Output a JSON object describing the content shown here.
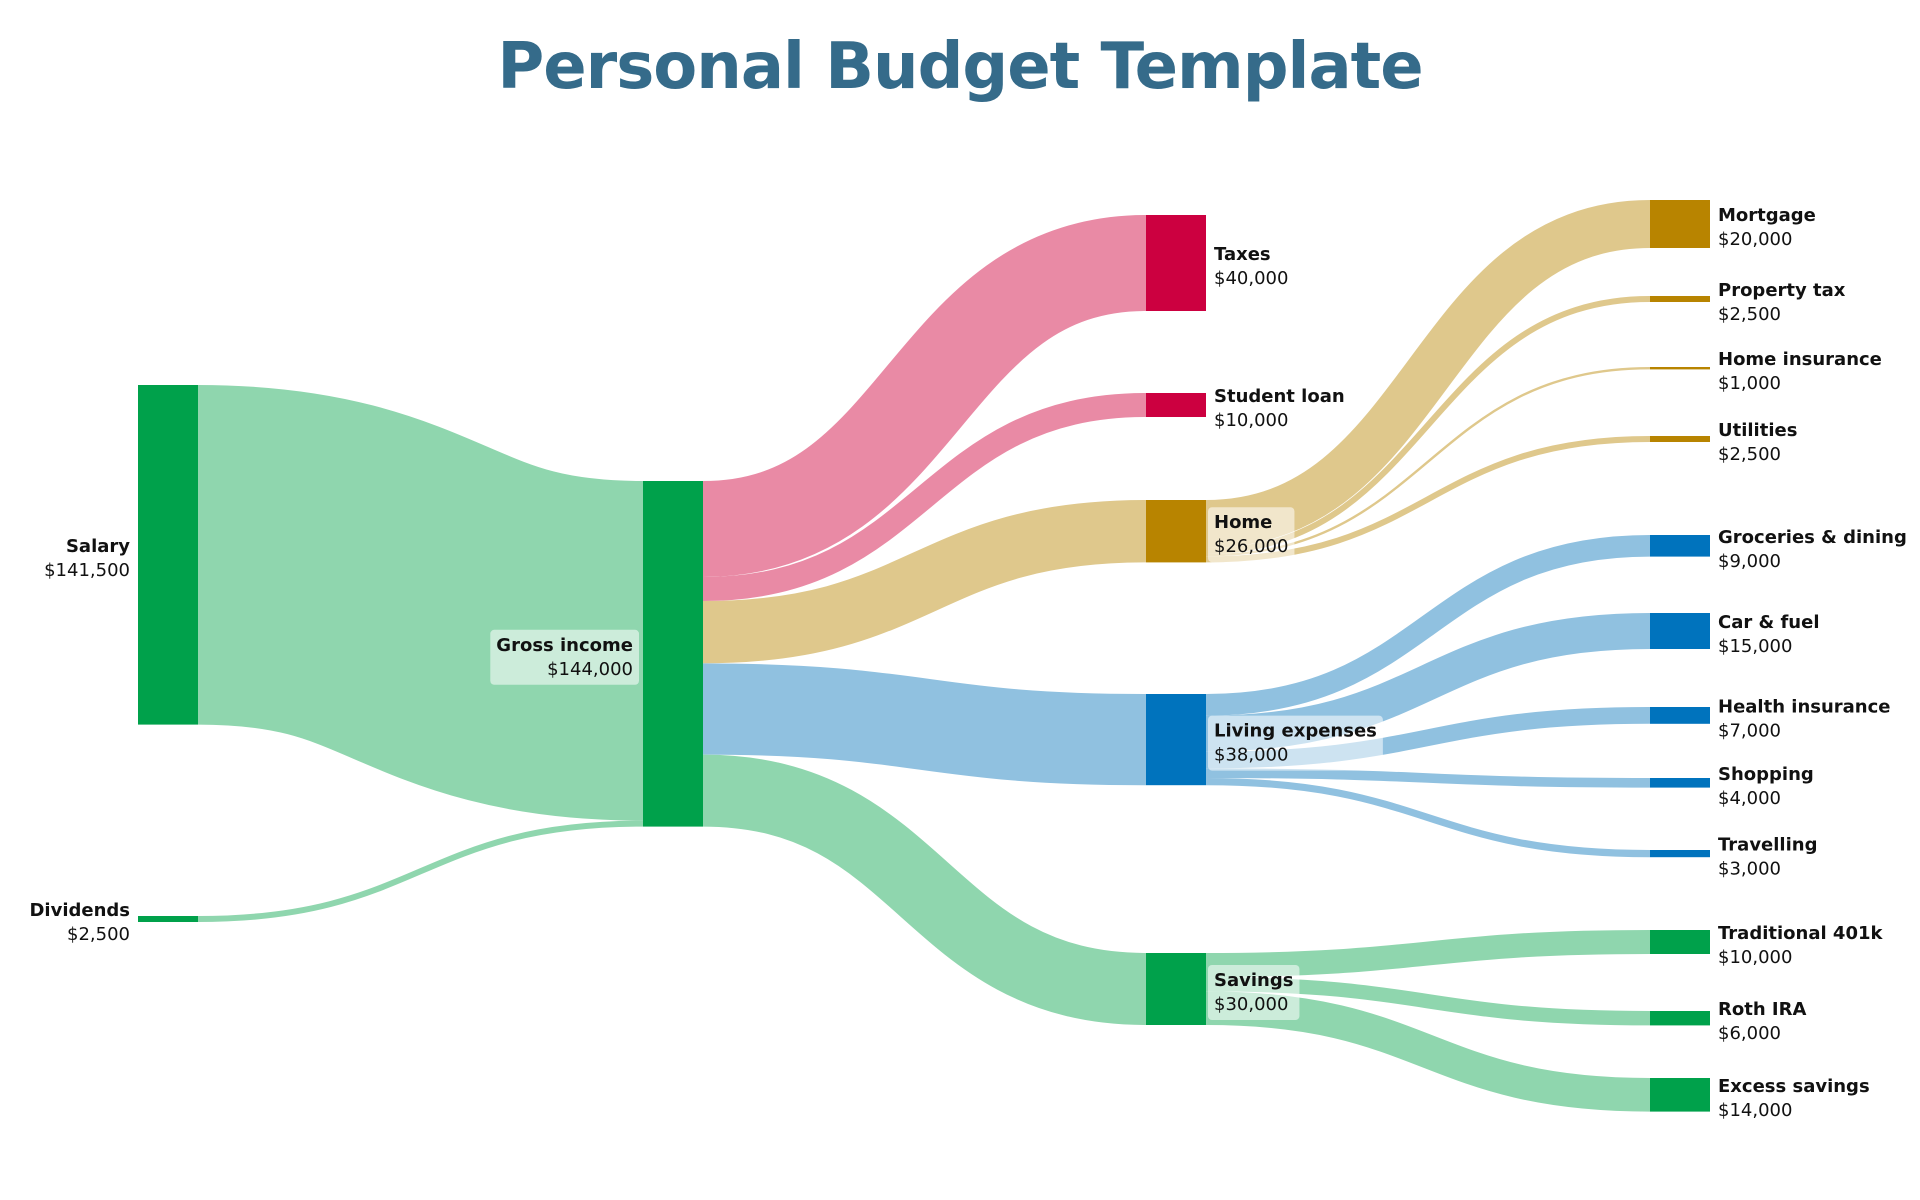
{
  "chart_data": {
    "type": "sankey",
    "title": "Personal Budget Template",
    "nodes": [
      {
        "id": "salary",
        "name": "Salary",
        "value_label": "$141,500",
        "value": 141500,
        "column": 0,
        "color": "#00a14b",
        "label_side": "left"
      },
      {
        "id": "dividends",
        "name": "Dividends",
        "value_label": "$2,500",
        "value": 2500,
        "column": 0,
        "color": "#00a14b",
        "label_side": "left"
      },
      {
        "id": "gross",
        "name": "Gross income",
        "value_label": "$144,000",
        "value": 144000,
        "column": 1,
        "color": "#00a14b",
        "label_side": "left"
      },
      {
        "id": "taxes",
        "name": "Taxes",
        "value_label": "$40,000",
        "value": 40000,
        "column": 2,
        "color": "#cc0040",
        "label_side": "right"
      },
      {
        "id": "student",
        "name": "Student loan",
        "value_label": "$10,000",
        "value": 10000,
        "column": 2,
        "color": "#cc0040",
        "label_side": "right"
      },
      {
        "id": "home",
        "name": "Home",
        "value_label": "$26,000",
        "value": 26000,
        "column": 2,
        "color": "#b88400",
        "label_side": "right"
      },
      {
        "id": "living",
        "name": "Living expenses",
        "value_label": "$38,000",
        "value": 38000,
        "column": 2,
        "color": "#0073bd",
        "label_side": "right"
      },
      {
        "id": "savings",
        "name": "Savings",
        "value_label": "$30,000",
        "value": 30000,
        "column": 2,
        "color": "#00a14b",
        "label_side": "right"
      },
      {
        "id": "mortgage",
        "name": "Mortgage",
        "value_label": "$20,000",
        "value": 20000,
        "column": 3,
        "color": "#b88400",
        "label_side": "right"
      },
      {
        "id": "proptax",
        "name": "Property tax",
        "value_label": "$2,500",
        "value": 2500,
        "column": 3,
        "color": "#b88400",
        "label_side": "right"
      },
      {
        "id": "homeins",
        "name": "Home insurance",
        "value_label": "$1,000",
        "value": 1000,
        "column": 3,
        "color": "#b88400",
        "label_side": "right"
      },
      {
        "id": "utilities",
        "name": "Utilities",
        "value_label": "$2,500",
        "value": 2500,
        "column": 3,
        "color": "#b88400",
        "label_side": "right"
      },
      {
        "id": "groceries",
        "name": "Groceries & dining",
        "value_label": "$9,000",
        "value": 9000,
        "column": 3,
        "color": "#0073bd",
        "label_side": "right"
      },
      {
        "id": "car",
        "name": "Car & fuel",
        "value_label": "$15,000",
        "value": 15000,
        "column": 3,
        "color": "#0073bd",
        "label_side": "right"
      },
      {
        "id": "health",
        "name": "Health insurance",
        "value_label": "$7,000",
        "value": 7000,
        "column": 3,
        "color": "#0073bd",
        "label_side": "right"
      },
      {
        "id": "shopping",
        "name": "Shopping",
        "value_label": "$4,000",
        "value": 4000,
        "column": 3,
        "color": "#0073bd",
        "label_side": "right"
      },
      {
        "id": "travelling",
        "name": "Travelling",
        "value_label": "$3,000",
        "value": 3000,
        "column": 3,
        "color": "#0073bd",
        "label_side": "right"
      },
      {
        "id": "trad401k",
        "name": "Traditional 401k",
        "value_label": "$10,000",
        "value": 10000,
        "column": 3,
        "color": "#00a14b",
        "label_side": "right"
      },
      {
        "id": "rothira",
        "name": "Roth IRA",
        "value_label": "$6,000",
        "value": 6000,
        "column": 3,
        "color": "#00a14b",
        "label_side": "right"
      },
      {
        "id": "excess",
        "name": "Excess savings",
        "value_label": "$14,000",
        "value": 14000,
        "column": 3,
        "color": "#00a14b",
        "label_side": "right"
      }
    ],
    "links": [
      {
        "source": "salary",
        "target": "gross",
        "value": 141500,
        "color": "#8fd6ae"
      },
      {
        "source": "dividends",
        "target": "gross",
        "value": 2500,
        "color": "#8fd6ae"
      },
      {
        "source": "gross",
        "target": "taxes",
        "value": 40000,
        "color": "#e98aa5"
      },
      {
        "source": "gross",
        "target": "student",
        "value": 10000,
        "color": "#e98aa5"
      },
      {
        "source": "gross",
        "target": "home",
        "value": 26000,
        "color": "#dfc88c"
      },
      {
        "source": "gross",
        "target": "living",
        "value": 38000,
        "color": "#90c1e0"
      },
      {
        "source": "gross",
        "target": "savings",
        "value": 30000,
        "color": "#8fd6ae"
      },
      {
        "source": "home",
        "target": "mortgage",
        "value": 20000,
        "color": "#dfc88c"
      },
      {
        "source": "home",
        "target": "proptax",
        "value": 2500,
        "color": "#dfc88c"
      },
      {
        "source": "home",
        "target": "homeins",
        "value": 1000,
        "color": "#dfc88c"
      },
      {
        "source": "home",
        "target": "utilities",
        "value": 2500,
        "color": "#dfc88c"
      },
      {
        "source": "living",
        "target": "groceries",
        "value": 9000,
        "color": "#90c1e0"
      },
      {
        "source": "living",
        "target": "car",
        "value": 15000,
        "color": "#90c1e0"
      },
      {
        "source": "living",
        "target": "health",
        "value": 7000,
        "color": "#90c1e0"
      },
      {
        "source": "living",
        "target": "shopping",
        "value": 4000,
        "color": "#90c1e0"
      },
      {
        "source": "living",
        "target": "travelling",
        "value": 3000,
        "color": "#90c1e0"
      },
      {
        "source": "savings",
        "target": "trad401k",
        "value": 10000,
        "color": "#8fd6ae"
      },
      {
        "source": "savings",
        "target": "rothira",
        "value": 6000,
        "color": "#8fd6ae"
      },
      {
        "source": "savings",
        "target": "excess",
        "value": 14000,
        "color": "#8fd6ae"
      }
    ]
  }
}
